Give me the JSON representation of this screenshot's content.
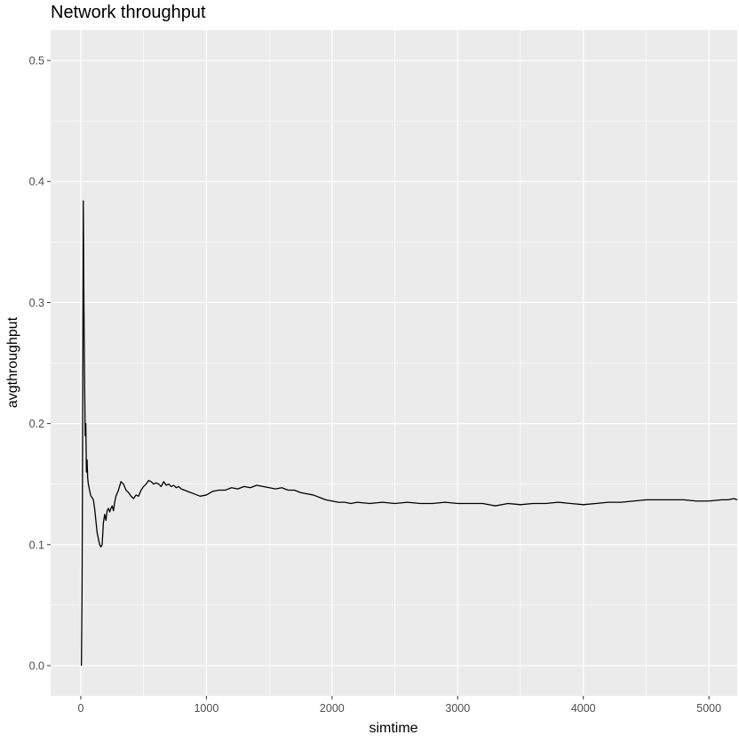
{
  "chart_data": {
    "type": "line",
    "title": "Network throughput",
    "xlabel": "simtime",
    "ylabel": "avgthroughput",
    "xlim": [
      -240,
      5225
    ],
    "ylim": [
      -0.025,
      0.525
    ],
    "x_ticks": [
      0,
      1000,
      2000,
      3000,
      4000,
      5000
    ],
    "x_tick_labels": [
      "0",
      "1000",
      "2000",
      "3000",
      "4000",
      "5000"
    ],
    "y_ticks": [
      0.0,
      0.1,
      0.2,
      0.3,
      0.4,
      0.5
    ],
    "y_tick_labels": [
      "0.0",
      "0.1",
      "0.2",
      "0.3",
      "0.4",
      "0.5"
    ],
    "grid": true,
    "legend": "none",
    "colors": {
      "panel": "#ebebeb",
      "grid": "#ffffff",
      "line": "#000000",
      "tick_text": "#4d4d4d"
    },
    "series": [
      {
        "x": [
          5,
          10,
          15,
          20,
          25,
          30,
          35,
          40,
          45,
          50,
          55,
          60,
          70,
          80,
          90,
          100,
          110,
          120,
          130,
          140,
          150,
          160,
          170,
          180,
          190,
          200,
          210,
          220,
          230,
          240,
          250,
          260,
          270,
          280,
          300,
          320,
          340,
          360,
          380,
          400,
          420,
          440,
          460,
          480,
          500,
          520,
          540,
          560,
          580,
          600,
          620,
          640,
          660,
          680,
          700,
          720,
          740,
          760,
          780,
          800,
          850,
          900,
          950,
          1000,
          1050,
          1100,
          1150,
          1200,
          1250,
          1300,
          1350,
          1400,
          1450,
          1500,
          1550,
          1600,
          1650,
          1700,
          1750,
          1800,
          1850,
          1900,
          1950,
          2000,
          2050,
          2100,
          2150,
          2200,
          2300,
          2400,
          2500,
          2600,
          2700,
          2800,
          2900,
          3000,
          3100,
          3200,
          3250,
          3300,
          3400,
          3500,
          3600,
          3700,
          3800,
          3900,
          4000,
          4100,
          4200,
          4300,
          4400,
          4500,
          4600,
          4700,
          4800,
          4900,
          5000,
          5100,
          5150,
          5200,
          5225
        ],
        "y": [
          0.0,
          0.06,
          0.2,
          0.384,
          0.3,
          0.24,
          0.19,
          0.2,
          0.16,
          0.17,
          0.155,
          0.15,
          0.145,
          0.14,
          0.139,
          0.137,
          0.13,
          0.12,
          0.11,
          0.105,
          0.1,
          0.098,
          0.1,
          0.118,
          0.125,
          0.12,
          0.128,
          0.13,
          0.127,
          0.13,
          0.132,
          0.128,
          0.135,
          0.14,
          0.145,
          0.152,
          0.15,
          0.145,
          0.143,
          0.14,
          0.138,
          0.141,
          0.14,
          0.145,
          0.148,
          0.15,
          0.153,
          0.152,
          0.15,
          0.151,
          0.15,
          0.148,
          0.152,
          0.149,
          0.15,
          0.148,
          0.149,
          0.147,
          0.148,
          0.146,
          0.144,
          0.142,
          0.14,
          0.141,
          0.144,
          0.145,
          0.145,
          0.147,
          0.146,
          0.148,
          0.147,
          0.149,
          0.148,
          0.147,
          0.146,
          0.147,
          0.145,
          0.145,
          0.143,
          0.142,
          0.141,
          0.139,
          0.137,
          0.136,
          0.135,
          0.135,
          0.134,
          0.135,
          0.134,
          0.135,
          0.134,
          0.135,
          0.134,
          0.134,
          0.135,
          0.134,
          0.134,
          0.134,
          0.133,
          0.132,
          0.134,
          0.133,
          0.134,
          0.134,
          0.135,
          0.134,
          0.133,
          0.134,
          0.135,
          0.135,
          0.136,
          0.137,
          0.137,
          0.137,
          0.137,
          0.136,
          0.136,
          0.137,
          0.137,
          0.138,
          0.137
        ]
      }
    ]
  }
}
